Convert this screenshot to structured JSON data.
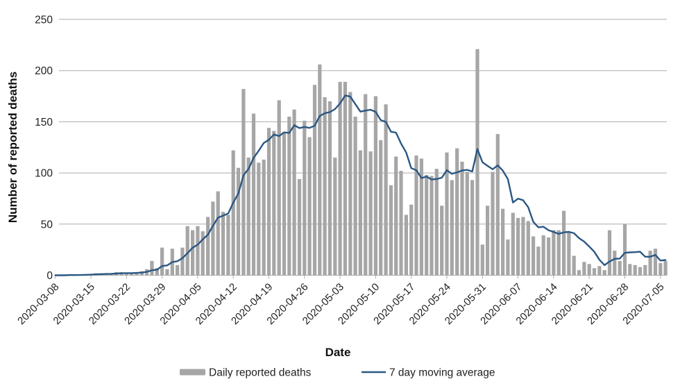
{
  "chart": {
    "y_axis_label": "Number of reported deaths",
    "x_axis_label": "Date",
    "colors": {
      "bar": "#a6a6a6",
      "line": "#2a5783",
      "grid": "#ababab",
      "text": "#1f1f1f",
      "background": "#ffffff"
    }
  },
  "chart_data": {
    "type": "bar",
    "title": "",
    "xlabel": "Date",
    "ylabel": "Number of reported deaths",
    "ylim": [
      0,
      250
    ],
    "y_ticks": [
      0,
      50,
      100,
      150,
      200,
      250
    ],
    "grid": "horizontal",
    "legend_position": "bottom",
    "x_tick_labels": [
      "2020-03-08",
      "2020-03-15",
      "2020-03-22",
      "2020-03-29",
      "2020-04-05",
      "2020-04-12",
      "2020-04-19",
      "2020-04-26",
      "2020-05-03",
      "2020-05-10",
      "2020-05-17",
      "2020-05-24",
      "2020-05-31",
      "2020-06-07",
      "2020-06-14",
      "2020-06-21",
      "2020-06-28",
      "2020-07-05"
    ],
    "categories": [
      "2020-03-08",
      "2020-03-09",
      "2020-03-10",
      "2020-03-11",
      "2020-03-12",
      "2020-03-13",
      "2020-03-14",
      "2020-03-15",
      "2020-03-16",
      "2020-03-17",
      "2020-03-18",
      "2020-03-19",
      "2020-03-20",
      "2020-03-21",
      "2020-03-22",
      "2020-03-23",
      "2020-03-24",
      "2020-03-25",
      "2020-03-26",
      "2020-03-27",
      "2020-03-28",
      "2020-03-29",
      "2020-03-30",
      "2020-03-31",
      "2020-04-01",
      "2020-04-02",
      "2020-04-03",
      "2020-04-04",
      "2020-04-05",
      "2020-04-06",
      "2020-04-07",
      "2020-04-08",
      "2020-04-09",
      "2020-04-10",
      "2020-04-11",
      "2020-04-12",
      "2020-04-13",
      "2020-04-14",
      "2020-04-15",
      "2020-04-16",
      "2020-04-17",
      "2020-04-18",
      "2020-04-19",
      "2020-04-20",
      "2020-04-21",
      "2020-04-22",
      "2020-04-23",
      "2020-04-24",
      "2020-04-25",
      "2020-04-26",
      "2020-04-27",
      "2020-04-28",
      "2020-04-29",
      "2020-04-30",
      "2020-05-01",
      "2020-05-02",
      "2020-05-03",
      "2020-05-04",
      "2020-05-05",
      "2020-05-06",
      "2020-05-07",
      "2020-05-08",
      "2020-05-09",
      "2020-05-10",
      "2020-05-11",
      "2020-05-12",
      "2020-05-13",
      "2020-05-14",
      "2020-05-15",
      "2020-05-16",
      "2020-05-17",
      "2020-05-18",
      "2020-05-19",
      "2020-05-20",
      "2020-05-21",
      "2020-05-22",
      "2020-05-23",
      "2020-05-24",
      "2020-05-25",
      "2020-05-26",
      "2020-05-27",
      "2020-05-28",
      "2020-05-29",
      "2020-05-30",
      "2020-05-31",
      "2020-06-01",
      "2020-06-02",
      "2020-06-03",
      "2020-06-04",
      "2020-06-05",
      "2020-06-06",
      "2020-06-07",
      "2020-06-08",
      "2020-06-09",
      "2020-06-10",
      "2020-06-11",
      "2020-06-12",
      "2020-06-13",
      "2020-06-14",
      "2020-06-15",
      "2020-06-16",
      "2020-06-17",
      "2020-06-18",
      "2020-06-19",
      "2020-06-20",
      "2020-06-21",
      "2020-06-22",
      "2020-06-23",
      "2020-06-24",
      "2020-06-25",
      "2020-06-26",
      "2020-06-27",
      "2020-06-28",
      "2020-06-29",
      "2020-06-30",
      "2020-07-01",
      "2020-07-02",
      "2020-07-03",
      "2020-07-04",
      "2020-07-05",
      "2020-07-06"
    ],
    "series": [
      {
        "name": "Daily reported deaths",
        "type": "bar",
        "color": "#a6a6a6",
        "values": [
          0,
          0,
          0,
          1,
          0,
          1,
          1,
          1,
          2,
          2,
          2,
          1,
          3,
          3,
          2,
          2,
          3,
          4,
          6,
          14,
          7,
          27,
          6,
          26,
          10,
          27,
          48,
          44,
          48,
          43,
          57,
          72,
          82,
          62,
          59,
          122,
          105,
          182,
          115,
          158,
          110,
          113,
          144,
          141,
          171,
          140,
          155,
          162,
          94,
          151,
          135,
          186,
          206,
          174,
          170,
          115,
          189,
          189,
          179,
          155,
          122,
          177,
          121,
          175,
          132,
          167,
          88,
          116,
          102,
          59,
          69,
          117,
          114,
          98,
          97,
          104,
          68,
          120,
          93,
          124,
          111,
          101,
          93,
          221,
          30,
          68,
          101,
          138,
          65,
          35,
          61,
          56,
          57,
          53,
          38,
          28,
          39,
          37,
          44,
          44,
          63,
          42,
          19,
          5,
          13,
          11,
          7,
          9,
          5,
          44,
          24,
          14,
          50,
          11,
          10,
          8,
          10,
          24,
          26,
          12,
          14
        ]
      },
      {
        "name": "7 day moving average",
        "type": "line",
        "color": "#2a5783",
        "values": [
          0,
          0,
          0,
          0.3,
          0.2,
          0.3,
          0.4,
          0.6,
          0.9,
          1.1,
          1.3,
          1.4,
          1.7,
          2,
          2.1,
          2.1,
          2.3,
          2.6,
          3.3,
          4.9,
          5.4,
          9,
          9.6,
          12.9,
          13.7,
          16.7,
          21.6,
          26.9,
          29.9,
          35.1,
          39.6,
          48.4,
          56.3,
          58.3,
          60.4,
          71,
          79.9,
          97.7,
          103.9,
          114.7,
          121.6,
          129.3,
          132.4,
          137.6,
          136,
          139.6,
          139.1,
          146.6,
          143.9,
          144.9,
          144,
          146.1,
          155.6,
          158.3,
          159.4,
          162.4,
          167.9,
          175.6,
          174.6,
          167.3,
          159.9,
          160.9,
          161.7,
          159.7,
          151.6,
          149.9,
          140.3,
          139.4,
          128.7,
          119.9,
          104.7,
          102.6,
          95,
          96.4,
          93.7,
          94,
          95.3,
          102.6,
          99.1,
          100.6,
          102.4,
          103,
          101.4,
          123.3,
          110.4,
          106.9,
          103.6,
          107.4,
          102.3,
          94,
          71.1,
          74.9,
          73.3,
          66.4,
          52.1,
          46.9,
          47.4,
          44,
          42.3,
          40.4,
          41.9,
          42.4,
          41.1,
          36.3,
          32.9,
          28.1,
          22.9,
          15.1,
          9.9,
          13.4,
          16.1,
          16.3,
          21.9,
          22.4,
          22.6,
          23,
          18.1,
          18.1,
          19.9,
          14.4,
          14.9
        ]
      }
    ]
  }
}
